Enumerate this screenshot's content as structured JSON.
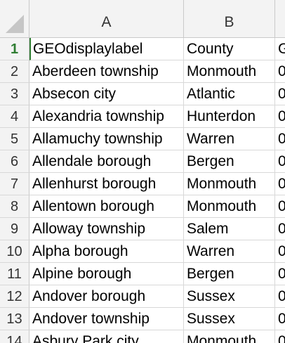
{
  "columns": [
    "A",
    "B"
  ],
  "rows": [
    {
      "num": "1",
      "a": "GEOdisplaylabel",
      "b": "County",
      "c": "G"
    },
    {
      "num": "2",
      "a": "Aberdeen township",
      "b": "Monmouth",
      "c": "0"
    },
    {
      "num": "3",
      "a": "Absecon city",
      "b": "Atlantic",
      "c": "0"
    },
    {
      "num": "4",
      "a": "Alexandria township",
      "b": "Hunterdon",
      "c": "0"
    },
    {
      "num": "5",
      "a": "Allamuchy township",
      "b": "Warren",
      "c": "0"
    },
    {
      "num": "6",
      "a": "Allendale borough",
      "b": "Bergen",
      "c": "0"
    },
    {
      "num": "7",
      "a": "Allenhurst borough",
      "b": "Monmouth",
      "c": "0"
    },
    {
      "num": "8",
      "a": "Allentown borough",
      "b": "Monmouth",
      "c": "0"
    },
    {
      "num": "9",
      "a": "Alloway township",
      "b": "Salem",
      "c": "0"
    },
    {
      "num": "10",
      "a": "Alpha borough",
      "b": "Warren",
      "c": "0"
    },
    {
      "num": "11",
      "a": "Alpine borough",
      "b": "Bergen",
      "c": "0"
    },
    {
      "num": "12",
      "a": "Andover borough",
      "b": "Sussex",
      "c": "0"
    },
    {
      "num": "13",
      "a": "Andover township",
      "b": "Sussex",
      "c": "0"
    },
    {
      "num": "14",
      "a": "Asbury Park city",
      "b": "Monmouth",
      "c": "0"
    }
  ],
  "colors": {
    "selection": "#2f7d32",
    "header_bg": "#f3f3f3",
    "grid": "#d8d8d8"
  }
}
